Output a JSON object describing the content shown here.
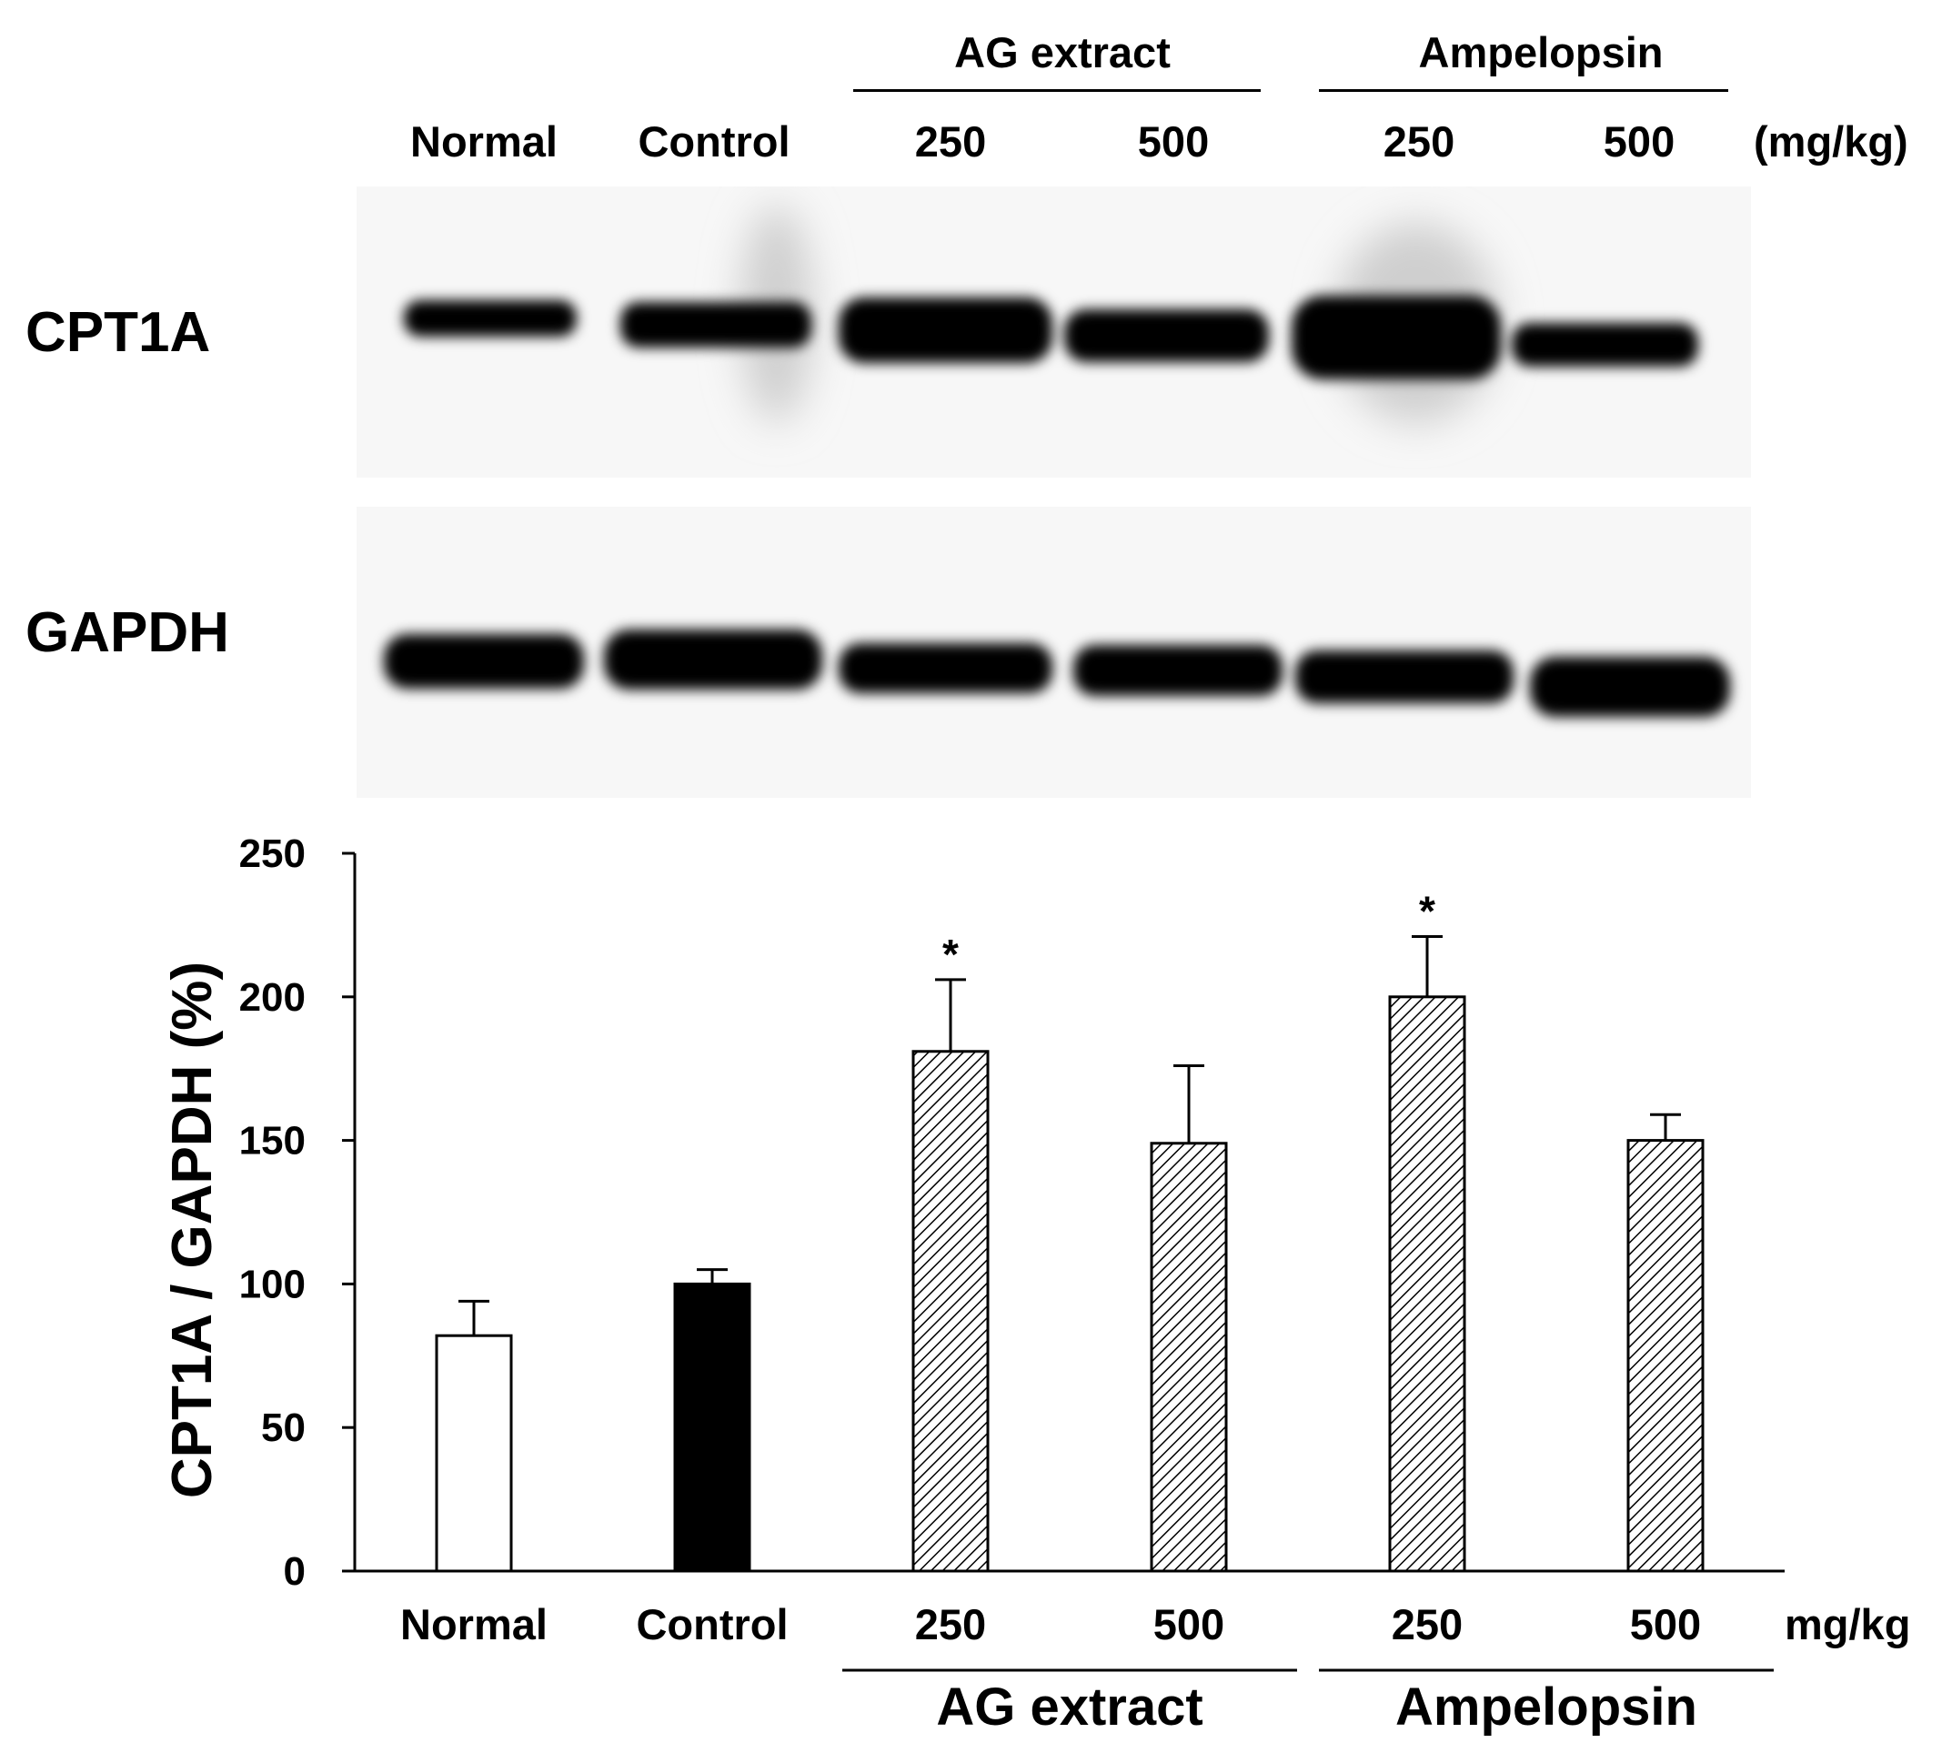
{
  "blot": {
    "lane_labels": [
      "Normal",
      "Control",
      "250",
      "500",
      "250",
      "500"
    ],
    "unit_label": "(mg/kg)",
    "group_labels": [
      "AG extract",
      "Ampelopsin"
    ],
    "proteins": [
      "CPT1A",
      "GAPDH"
    ]
  },
  "chart_data": {
    "type": "bar",
    "categories": [
      "Normal",
      "Control",
      "250",
      "500",
      "250",
      "500"
    ],
    "groups": [
      {
        "label": "AG extract",
        "categories": [
          "250",
          "500"
        ]
      },
      {
        "label": "Ampelopsin",
        "categories": [
          "250",
          "500"
        ]
      }
    ],
    "unit_label": "mg/kg",
    "ylabel": "CPT1A / GAPDH (%)",
    "ylim": [
      0,
      250
    ],
    "yticks": [
      0,
      50,
      100,
      150,
      200,
      250
    ],
    "series": [
      {
        "values": [
          82,
          100,
          181,
          149,
          200,
          150
        ],
        "error": [
          12,
          5,
          25,
          27,
          21,
          9
        ],
        "fill": [
          "white",
          "black",
          "hatch",
          "hatch",
          "hatch",
          "hatch"
        ]
      }
    ],
    "annotations": [
      {
        "category_index": 2,
        "text": "*"
      },
      {
        "category_index": 4,
        "text": "*"
      }
    ],
    "grid": false,
    "legend": "none"
  }
}
